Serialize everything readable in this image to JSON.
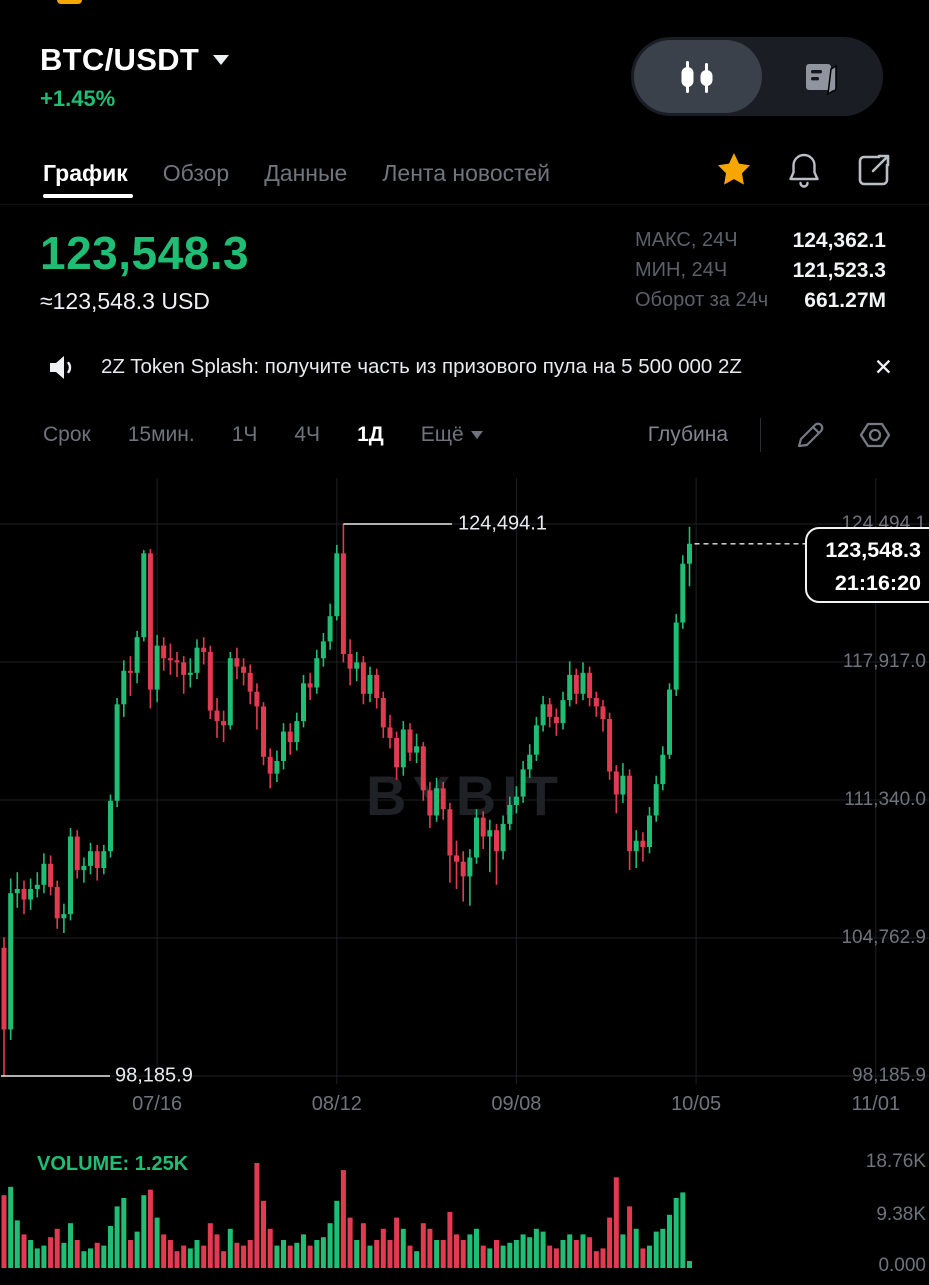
{
  "header": {
    "symbol": "BTC/USDT",
    "change_pct": "+1.45%",
    "view_toggle": [
      "candlestick-view",
      "orderbook-view"
    ]
  },
  "tabs": [
    {
      "label": "График",
      "active": true
    },
    {
      "label": "Обзор",
      "active": false
    },
    {
      "label": "Данные",
      "active": false
    },
    {
      "label": "Лента новостей",
      "active": false
    }
  ],
  "price_section": {
    "last_price": "123,548.3",
    "usd_equiv": "≈123,548.3 USD",
    "stats": [
      {
        "label": "МАКС, 24Ч",
        "value": "124,362.1"
      },
      {
        "label": "МИН, 24Ч",
        "value": "121,523.3"
      },
      {
        "label": "Оборот за 24ч",
        "value": "661.27M"
      }
    ]
  },
  "announcement": {
    "text": "2Z Token Splash: получите часть из призового пула на 5 500 000 2Z",
    "close": "✕"
  },
  "toolbar": {
    "period_label": "Срок",
    "timeframes": [
      {
        "label": "15мин.",
        "active": false
      },
      {
        "label": "1Ч",
        "active": false
      },
      {
        "label": "4Ч",
        "active": false
      },
      {
        "label": "1Д",
        "active": true
      },
      {
        "label": "Ещё",
        "active": false,
        "dropdown": true
      }
    ],
    "depth_label": "Глубина"
  },
  "colors": {
    "up": "#20bd74",
    "down": "#e23b51",
    "accent": "#f7a600",
    "grid": "#1d2024",
    "axis_text": "#6e737d",
    "watermark": "#1e2126",
    "white": "#eef0f3"
  },
  "chart_data": {
    "type": "candlestick",
    "timeframe": "1Д",
    "watermark": "BYBIT",
    "price_axis_ticks": [
      124494.1,
      117917.0,
      111340.0,
      104762.9,
      98185.9
    ],
    "price_axis_labels": [
      "124,494.1",
      "117,917.0",
      "111,340.0",
      "104,762.9",
      "98,185.9"
    ],
    "x_axis_labels": [
      "07/16",
      "08/12",
      "09/08",
      "10/05",
      "11/01"
    ],
    "x_axis_day_index": [
      23,
      50,
      77,
      104,
      131
    ],
    "high_annotation": {
      "label": "124,494.1",
      "value": 124494.1,
      "candle_index": 51
    },
    "low_annotation": {
      "label": "98,185.9",
      "value": 98185.9,
      "candle_index": 0
    },
    "last_price_marker": {
      "price_label": "123,548.3",
      "time_label": "21:16:20",
      "value": 123548.3
    },
    "volume": {
      "label": "VOLUME: 1.25K",
      "axis_labels": [
        "18.76K",
        "9.38K",
        "0.000"
      ],
      "axis_max": 18760
    },
    "candles": [
      [
        104300,
        104800,
        98185.9,
        100400,
        13000
      ],
      [
        100400,
        107600,
        99900,
        106900,
        14500
      ],
      [
        106900,
        107900,
        106200,
        107100,
        8500
      ],
      [
        107100,
        107500,
        105900,
        106600,
        6000
      ],
      [
        106600,
        107600,
        106100,
        107100,
        5000
      ],
      [
        107100,
        107900,
        106700,
        107300,
        3500
      ],
      [
        107300,
        108800,
        106900,
        108300,
        4000
      ],
      [
        108300,
        108700,
        106800,
        107200,
        5500
      ],
      [
        107200,
        107500,
        105200,
        105700,
        7000
      ],
      [
        105700,
        106400,
        105000,
        105900,
        4500
      ],
      [
        105900,
        110000,
        105600,
        109600,
        8000
      ],
      [
        109600,
        109900,
        107600,
        108000,
        5000
      ],
      [
        108000,
        108600,
        107400,
        108200,
        3000
      ],
      [
        108200,
        109300,
        107800,
        108900,
        3500
      ],
      [
        108900,
        109200,
        107500,
        108100,
        4500
      ],
      [
        108100,
        109200,
        107800,
        108900,
        4000
      ],
      [
        108900,
        111600,
        108600,
        111300,
        7500
      ],
      [
        111300,
        116200,
        111000,
        115900,
        11000
      ],
      [
        115900,
        118000,
        115300,
        117500,
        12500
      ],
      [
        117500,
        118200,
        116300,
        117400,
        5000
      ],
      [
        117400,
        119400,
        116900,
        119100,
        6500
      ],
      [
        119100,
        123250,
        118900,
        123100,
        13000
      ],
      [
        123100,
        123300,
        115700,
        116600,
        14000
      ],
      [
        116600,
        119200,
        116000,
        118700,
        9000
      ],
      [
        118700,
        119100,
        117500,
        118100,
        6000
      ],
      [
        118100,
        118800,
        117300,
        118000,
        5000
      ],
      [
        118000,
        118400,
        117200,
        117900,
        3000
      ],
      [
        117900,
        118200,
        116400,
        117300,
        4000
      ],
      [
        117300,
        118100,
        116700,
        117400,
        3500
      ],
      [
        117400,
        119000,
        117100,
        118600,
        5000
      ],
      [
        118600,
        119100,
        117800,
        118400,
        4000
      ],
      [
        118400,
        118700,
        115200,
        115600,
        8000
      ],
      [
        115600,
        116200,
        114300,
        115100,
        6000
      ],
      [
        115100,
        115600,
        114100,
        114900,
        3000
      ],
      [
        114900,
        118400,
        114700,
        118100,
        7000
      ],
      [
        118100,
        118600,
        117100,
        117700,
        4500
      ],
      [
        117700,
        118100,
        116800,
        117400,
        4000
      ],
      [
        117400,
        117800,
        115900,
        116500,
        5000
      ],
      [
        116500,
        116900,
        114700,
        115800,
        18760
      ],
      [
        115800,
        116000,
        113000,
        113400,
        12000
      ],
      [
        113400,
        113800,
        111900,
        112600,
        7000
      ],
      [
        112600,
        113700,
        112200,
        113200,
        4000
      ],
      [
        113200,
        115000,
        112800,
        114600,
        5000
      ],
      [
        114600,
        115000,
        113500,
        114100,
        4000
      ],
      [
        114100,
        115500,
        113700,
        115100,
        4500
      ],
      [
        115100,
        117300,
        114800,
        116900,
        6000
      ],
      [
        116900,
        117400,
        116100,
        116700,
        4000
      ],
      [
        116700,
        118500,
        116400,
        118100,
        5000
      ],
      [
        118100,
        119300,
        117700,
        118900,
        5500
      ],
      [
        118900,
        120700,
        118500,
        120100,
        8000
      ],
      [
        120100,
        123500,
        119900,
        123100,
        12000
      ],
      [
        123100,
        124494.1,
        117900,
        118300,
        17500
      ],
      [
        118300,
        119000,
        116800,
        117600,
        9000
      ],
      [
        117600,
        118400,
        117000,
        117900,
        5000
      ],
      [
        117900,
        118200,
        115900,
        116400,
        8000
      ],
      [
        116400,
        117700,
        116000,
        117300,
        4000
      ],
      [
        117300,
        117600,
        115700,
        116200,
        5000
      ],
      [
        116200,
        116500,
        114300,
        114800,
        7000
      ],
      [
        114800,
        115400,
        113800,
        114300,
        5000
      ],
      [
        114300,
        114600,
        112300,
        112900,
        9000
      ],
      [
        112900,
        115100,
        112500,
        114700,
        7000
      ],
      [
        114700,
        115000,
        113200,
        113600,
        4000
      ],
      [
        113600,
        114500,
        113100,
        113900,
        3000
      ],
      [
        113900,
        114100,
        111300,
        111800,
        8000
      ],
      [
        111800,
        112200,
        110000,
        110600,
        7000
      ],
      [
        110600,
        112400,
        110300,
        111900,
        5000
      ],
      [
        111900,
        112200,
        110400,
        110900,
        5000
      ],
      [
        110900,
        111200,
        107400,
        108700,
        10000
      ],
      [
        108700,
        109400,
        107100,
        108400,
        6000
      ],
      [
        108400,
        108900,
        106500,
        107700,
        5000
      ],
      [
        107700,
        109000,
        106300,
        108600,
        6000
      ],
      [
        108600,
        110900,
        108300,
        110500,
        7000
      ],
      [
        110500,
        110800,
        109000,
        109600,
        4000
      ],
      [
        109600,
        110400,
        107900,
        109900,
        3500
      ],
      [
        109900,
        110200,
        107300,
        108900,
        5000
      ],
      [
        108900,
        110600,
        108500,
        110200,
        4000
      ],
      [
        110200,
        111500,
        109900,
        111100,
        4500
      ],
      [
        111100,
        112000,
        110700,
        111500,
        5000
      ],
      [
        111500,
        113200,
        111200,
        112800,
        6000
      ],
      [
        112800,
        114000,
        112400,
        113500,
        5500
      ],
      [
        113500,
        115300,
        113200,
        114900,
        7000
      ],
      [
        114900,
        116300,
        114600,
        115900,
        6500
      ],
      [
        115900,
        116200,
        114800,
        115300,
        4000
      ],
      [
        115300,
        115700,
        114400,
        115000,
        3500
      ],
      [
        115000,
        116500,
        114700,
        116100,
        5000
      ],
      [
        116100,
        117950,
        115800,
        117300,
        6000
      ],
      [
        117300,
        117600,
        115900,
        116400,
        5000
      ],
      [
        116400,
        117900,
        116100,
        117400,
        6000
      ],
      [
        117400,
        117700,
        115800,
        116200,
        5500
      ],
      [
        116200,
        116500,
        115300,
        115800,
        3000
      ],
      [
        115800,
        116100,
        114600,
        115200,
        3500
      ],
      [
        115200,
        115500,
        112300,
        112700,
        9000
      ],
      [
        112700,
        113000,
        110700,
        111600,
        16200
      ],
      [
        111600,
        113100,
        111200,
        112500,
        6000
      ],
      [
        112500,
        112800,
        108000,
        108900,
        11000
      ],
      [
        108900,
        109900,
        108100,
        109400,
        7000
      ],
      [
        109400,
        109800,
        108400,
        109100,
        3500
      ],
      [
        109100,
        111000,
        108800,
        110600,
        4000
      ],
      [
        110600,
        112500,
        110300,
        112100,
        6500
      ],
      [
        112100,
        113900,
        111800,
        113500,
        7000
      ],
      [
        113500,
        116900,
        113300,
        116600,
        9500
      ],
      [
        116600,
        120200,
        116300,
        119800,
        12500
      ],
      [
        119800,
        123000,
        119500,
        122600,
        13500
      ],
      [
        122600,
        124362.1,
        121523.3,
        123548.3,
        1250
      ]
    ]
  }
}
